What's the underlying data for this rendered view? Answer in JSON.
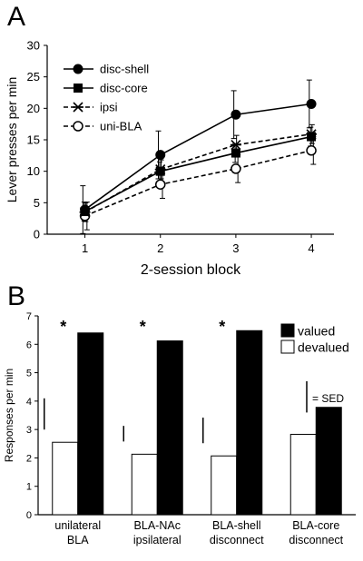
{
  "chart_data": [
    {
      "panel": "A",
      "type": "line",
      "xlabel": "2-session block",
      "ylabel": "Lever presses per min",
      "x": [
        1,
        2,
        3,
        4
      ],
      "xlim": [
        0.5,
        4.3
      ],
      "ylim": [
        0,
        30
      ],
      "yticks": [
        0,
        5,
        10,
        15,
        20,
        25,
        30
      ],
      "legend": "top-left",
      "series": [
        {
          "name": "disc-shell",
          "values": [
            3.9,
            12.6,
            19.0,
            20.7
          ],
          "err": [
            3.8,
            3.8,
            3.8,
            3.8
          ],
          "marker": "filled-circle",
          "dash": "solid"
        },
        {
          "name": "disc-core",
          "values": [
            3.6,
            10.0,
            12.9,
            15.5
          ],
          "err": [
            1.5,
            1.5,
            1.5,
            1.5
          ],
          "marker": "filled-square",
          "dash": "solid"
        },
        {
          "name": "ipsi",
          "values": [
            3.5,
            10.3,
            14.2,
            15.9
          ],
          "err": [
            1.5,
            1.5,
            1.5,
            1.5
          ],
          "marker": "star",
          "dash": "dashed"
        },
        {
          "name": "uni-BLA",
          "values": [
            2.9,
            7.9,
            10.4,
            13.3
          ],
          "err": [
            2.2,
            2.2,
            2.2,
            2.2
          ],
          "marker": "open-circle",
          "dash": "dashed"
        }
      ]
    },
    {
      "panel": "B",
      "type": "bar",
      "ylabel": "Responses per min",
      "ylim": [
        0,
        7
      ],
      "yticks": [
        0,
        1,
        2,
        3,
        4,
        5,
        6,
        7
      ],
      "categories": [
        [
          "unilateral",
          "BLA"
        ],
        [
          "BLA-NAc",
          "ipsilateral"
        ],
        [
          "BLA-shell",
          "disconnect"
        ],
        [
          "BLA-core",
          "disconnect"
        ]
      ],
      "series": [
        {
          "name": "devalued",
          "values": [
            2.55,
            2.13,
            2.07,
            2.83
          ],
          "fill": "#ffffff"
        },
        {
          "name": "valued",
          "values": [
            6.4,
            6.12,
            6.48,
            3.78
          ],
          "fill": "#000000"
        }
      ],
      "significance": [
        "*",
        "*",
        "*",
        ""
      ],
      "sed_bars": [
        1.1,
        0.55,
        0.9,
        1.1
      ],
      "sed_label": "= SED",
      "legend": "top-right"
    }
  ],
  "panel_labels": [
    "A",
    "B"
  ]
}
